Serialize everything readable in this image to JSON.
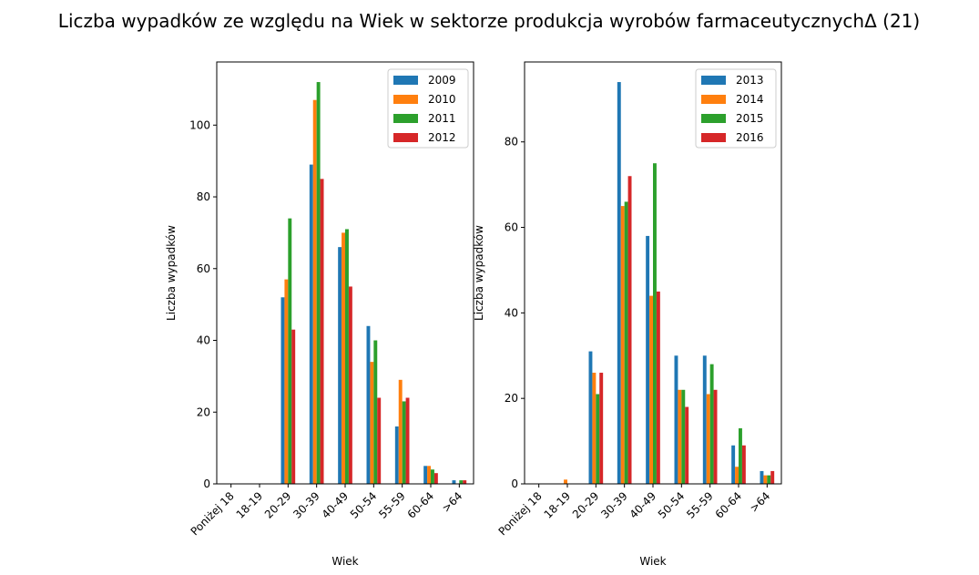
{
  "title": "Liczba wypadków ze względu na Wiek w sektorze produkcja wyrobów farmaceutycznychΔ (21)",
  "colors": [
    "#1f77b4",
    "#ff7f0e",
    "#2ca02c",
    "#d62728"
  ],
  "chart_data": [
    {
      "type": "bar",
      "xlabel": "Wiek",
      "ylabel": "Liczba wypadków",
      "categories": [
        "Poniżej 18",
        "18-19",
        "20-29",
        "30-39",
        "40-49",
        "50-54",
        "55-59",
        "60-64",
        ">64"
      ],
      "ylim": [
        0,
        117.6
      ],
      "yticks": [
        0,
        20,
        40,
        60,
        80,
        100
      ],
      "legend_position": "top-right",
      "grid": false,
      "series": [
        {
          "name": "2009",
          "values": [
            0,
            0,
            52,
            89,
            66,
            44,
            16,
            5,
            1
          ]
        },
        {
          "name": "2010",
          "values": [
            0,
            0,
            57,
            107,
            70,
            34,
            29,
            5,
            0
          ]
        },
        {
          "name": "2011",
          "values": [
            0,
            0,
            74,
            112,
            71,
            40,
            23,
            4,
            1
          ]
        },
        {
          "name": "2012",
          "values": [
            0,
            0,
            43,
            85,
            55,
            24,
            24,
            3,
            1
          ]
        }
      ]
    },
    {
      "type": "bar",
      "xlabel": "Wiek",
      "ylabel": "Liczba wypadków",
      "categories": [
        "Poniżej 18",
        "18-19",
        "20-29",
        "30-39",
        "40-49",
        "50-54",
        "55-59",
        "60-64",
        ">64"
      ],
      "ylim": [
        0,
        98.7
      ],
      "yticks": [
        0,
        20,
        40,
        60,
        80
      ],
      "legend_position": "top-right",
      "grid": false,
      "series": [
        {
          "name": "2013",
          "values": [
            0,
            0,
            31,
            94,
            58,
            30,
            30,
            9,
            3
          ]
        },
        {
          "name": "2014",
          "values": [
            0,
            1,
            26,
            65,
            44,
            22,
            21,
            4,
            2
          ]
        },
        {
          "name": "2015",
          "values": [
            0,
            0,
            21,
            66,
            75,
            22,
            28,
            13,
            2
          ]
        },
        {
          "name": "2016",
          "values": [
            0,
            0,
            26,
            72,
            45,
            18,
            22,
            9,
            3
          ]
        }
      ]
    }
  ]
}
